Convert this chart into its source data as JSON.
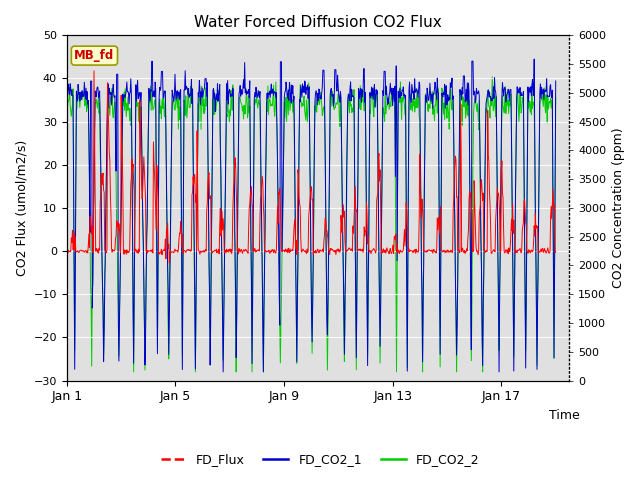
{
  "title": "Water Forced Diffusion CO2 Flux",
  "ylabel_left": "CO2 Flux (umol/m2/s)",
  "ylabel_right": "CO2 Concentration (ppm)",
  "xlabel": "Time",
  "ylim_left": [
    -30,
    50
  ],
  "ylim_right": [
    0,
    6000
  ],
  "xlim": [
    0,
    18.5
  ],
  "xtick_positions": [
    0,
    4,
    8,
    12,
    16
  ],
  "xtick_labels": [
    "Jan 1",
    "Jan 5",
    "Jan 9",
    "Jan 13",
    "Jan 17"
  ],
  "yticks_left": [
    -30,
    -20,
    -10,
    0,
    10,
    20,
    30,
    40,
    50
  ],
  "yticks_right": [
    0,
    500,
    1000,
    1500,
    2000,
    2500,
    3000,
    3500,
    4000,
    4500,
    5000,
    5500,
    6000
  ],
  "legend_labels": [
    "FD_Flux",
    "FD_CO2_1",
    "FD_CO2_2"
  ],
  "legend_colors": [
    "#ff0000",
    "#0000cc",
    "#00cc00"
  ],
  "annotation_text": "MB_fd",
  "annotation_color": "#cc0000",
  "annotation_bg": "#ffffcc",
  "background_color": "#e0e0e0",
  "fig_bg": "#ffffff",
  "n_days": 18,
  "seed": 42
}
